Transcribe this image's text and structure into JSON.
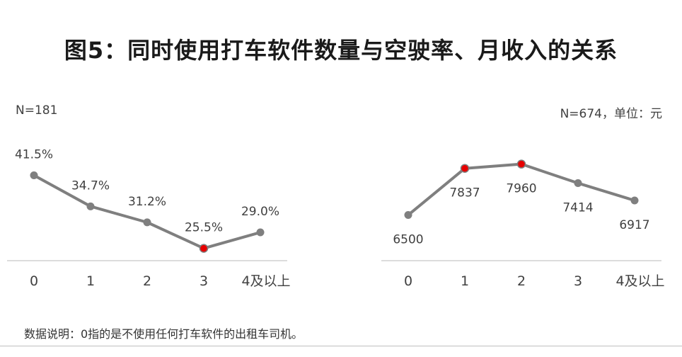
{
  "title": "图5：同时使用打车软件数量与空驶率、月收入的关系",
  "footnote": "数据说明：0指的是不使用任何打车软件的出租车司机。",
  "chart_data": [
    {
      "type": "line",
      "note": "N=181",
      "categories": [
        "0",
        "1",
        "2",
        "3",
        "4及以上"
      ],
      "values": [
        41.5,
        34.7,
        31.2,
        25.5,
        29.0
      ],
      "labels": [
        "41.5%",
        "34.7%",
        "31.2%",
        "25.5%",
        "29.0%"
      ],
      "highlight_index": [
        3
      ],
      "ylim": [
        20,
        45
      ],
      "line_color": "#7f7f7f",
      "highlight_color": "#e60000"
    },
    {
      "type": "line",
      "note": "N=674，单位：元",
      "categories": [
        "0",
        "1",
        "2",
        "3",
        "4及以上"
      ],
      "values": [
        6500,
        7837,
        7960,
        7414,
        6917
      ],
      "labels": [
        "6500",
        "7837",
        "7960",
        "7414",
        "6917"
      ],
      "highlight_index": [
        1,
        2
      ],
      "ylim": [
        5800,
        8400
      ],
      "line_color": "#7f7f7f",
      "highlight_color": "#e60000"
    }
  ]
}
